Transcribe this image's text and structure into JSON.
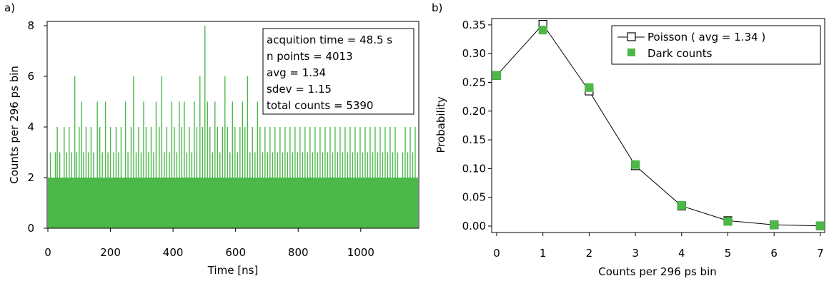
{
  "chart_data": [
    {
      "panel_label": "a)",
      "type": "line",
      "xlabel": "Time [ns]",
      "ylabel": "Counts per 296 ps bin",
      "xlim": [
        0,
        1185
      ],
      "ylim": [
        0,
        8
      ],
      "x_ticks": [
        "0",
        "200",
        "400",
        "600",
        "800",
        "1000"
      ],
      "y_ticks": [
        "0",
        "2",
        "4",
        "6",
        "8"
      ],
      "series": [
        {
          "color": "#4cb849",
          "n_points": 4013,
          "bin_width_ns": 0.296,
          "peaks": [
            {
              "x": 8,
              "y": 3
            },
            {
              "x": 18,
              "y": 2
            },
            {
              "x": 24,
              "y": 3
            },
            {
              "x": 30,
              "y": 4
            },
            {
              "x": 38,
              "y": 3
            },
            {
              "x": 46,
              "y": 2
            },
            {
              "x": 52,
              "y": 4
            },
            {
              "x": 60,
              "y": 3
            },
            {
              "x": 68,
              "y": 4
            },
            {
              "x": 76,
              "y": 3
            },
            {
              "x": 86,
              "y": 6
            },
            {
              "x": 92,
              "y": 3
            },
            {
              "x": 100,
              "y": 4
            },
            {
              "x": 108,
              "y": 5
            },
            {
              "x": 114,
              "y": 3
            },
            {
              "x": 122,
              "y": 4
            },
            {
              "x": 130,
              "y": 3
            },
            {
              "x": 138,
              "y": 4
            },
            {
              "x": 146,
              "y": 3
            },
            {
              "x": 158,
              "y": 5
            },
            {
              "x": 166,
              "y": 4
            },
            {
              "x": 174,
              "y": 3
            },
            {
              "x": 184,
              "y": 5
            },
            {
              "x": 192,
              "y": 3
            },
            {
              "x": 200,
              "y": 4
            },
            {
              "x": 210,
              "y": 3
            },
            {
              "x": 218,
              "y": 4
            },
            {
              "x": 226,
              "y": 3
            },
            {
              "x": 234,
              "y": 4
            },
            {
              "x": 240,
              "y": 2
            },
            {
              "x": 248,
              "y": 5
            },
            {
              "x": 256,
              "y": 3
            },
            {
              "x": 266,
              "y": 4
            },
            {
              "x": 274,
              "y": 6
            },
            {
              "x": 282,
              "y": 3
            },
            {
              "x": 290,
              "y": 4
            },
            {
              "x": 298,
              "y": 3
            },
            {
              "x": 306,
              "y": 5
            },
            {
              "x": 314,
              "y": 4
            },
            {
              "x": 322,
              "y": 3
            },
            {
              "x": 330,
              "y": 4
            },
            {
              "x": 338,
              "y": 3
            },
            {
              "x": 346,
              "y": 5
            },
            {
              "x": 356,
              "y": 4
            },
            {
              "x": 364,
              "y": 6
            },
            {
              "x": 372,
              "y": 3
            },
            {
              "x": 380,
              "y": 4
            },
            {
              "x": 388,
              "y": 3
            },
            {
              "x": 396,
              "y": 5
            },
            {
              "x": 404,
              "y": 4
            },
            {
              "x": 412,
              "y": 3
            },
            {
              "x": 420,
              "y": 5
            },
            {
              "x": 428,
              "y": 4
            },
            {
              "x": 436,
              "y": 5
            },
            {
              "x": 444,
              "y": 3
            },
            {
              "x": 452,
              "y": 4
            },
            {
              "x": 460,
              "y": 3
            },
            {
              "x": 468,
              "y": 5
            },
            {
              "x": 476,
              "y": 4
            },
            {
              "x": 486,
              "y": 6
            },
            {
              "x": 494,
              "y": 4
            },
            {
              "x": 502,
              "y": 8
            },
            {
              "x": 510,
              "y": 5
            },
            {
              "x": 518,
              "y": 4
            },
            {
              "x": 526,
              "y": 3
            },
            {
              "x": 534,
              "y": 5
            },
            {
              "x": 542,
              "y": 4
            },
            {
              "x": 550,
              "y": 3
            },
            {
              "x": 558,
              "y": 4
            },
            {
              "x": 566,
              "y": 6
            },
            {
              "x": 574,
              "y": 4
            },
            {
              "x": 582,
              "y": 3
            },
            {
              "x": 590,
              "y": 5
            },
            {
              "x": 598,
              "y": 4
            },
            {
              "x": 606,
              "y": 3
            },
            {
              "x": 614,
              "y": 4
            },
            {
              "x": 622,
              "y": 5
            },
            {
              "x": 630,
              "y": 4
            },
            {
              "x": 638,
              "y": 6
            },
            {
              "x": 646,
              "y": 3
            },
            {
              "x": 654,
              "y": 4
            },
            {
              "x": 662,
              "y": 3
            },
            {
              "x": 670,
              "y": 5
            },
            {
              "x": 678,
              "y": 4
            },
            {
              "x": 686,
              "y": 3
            },
            {
              "x": 694,
              "y": 4
            },
            {
              "x": 702,
              "y": 3
            },
            {
              "x": 710,
              "y": 4
            },
            {
              "x": 718,
              "y": 3
            },
            {
              "x": 726,
              "y": 4
            },
            {
              "x": 734,
              "y": 3
            },
            {
              "x": 742,
              "y": 4
            },
            {
              "x": 750,
              "y": 3
            },
            {
              "x": 758,
              "y": 4
            },
            {
              "x": 766,
              "y": 3
            },
            {
              "x": 774,
              "y": 4
            },
            {
              "x": 782,
              "y": 3
            },
            {
              "x": 790,
              "y": 4
            },
            {
              "x": 798,
              "y": 3
            },
            {
              "x": 806,
              "y": 4
            },
            {
              "x": 814,
              "y": 3
            },
            {
              "x": 822,
              "y": 4
            },
            {
              "x": 830,
              "y": 3
            },
            {
              "x": 838,
              "y": 4
            },
            {
              "x": 846,
              "y": 3
            },
            {
              "x": 854,
              "y": 4
            },
            {
              "x": 862,
              "y": 3
            },
            {
              "x": 870,
              "y": 4
            },
            {
              "x": 878,
              "y": 3
            },
            {
              "x": 886,
              "y": 4
            },
            {
              "x": 894,
              "y": 3
            },
            {
              "x": 902,
              "y": 4
            },
            {
              "x": 910,
              "y": 3
            },
            {
              "x": 918,
              "y": 4
            },
            {
              "x": 926,
              "y": 3
            },
            {
              "x": 934,
              "y": 4
            },
            {
              "x": 942,
              "y": 3
            },
            {
              "x": 950,
              "y": 4
            },
            {
              "x": 958,
              "y": 3
            },
            {
              "x": 966,
              "y": 4
            },
            {
              "x": 974,
              "y": 3
            },
            {
              "x": 982,
              "y": 4
            },
            {
              "x": 990,
              "y": 3
            },
            {
              "x": 998,
              "y": 4
            },
            {
              "x": 1006,
              "y": 3
            },
            {
              "x": 1014,
              "y": 4
            },
            {
              "x": 1022,
              "y": 3
            },
            {
              "x": 1030,
              "y": 4
            },
            {
              "x": 1038,
              "y": 3
            },
            {
              "x": 1046,
              "y": 4
            },
            {
              "x": 1054,
              "y": 3
            },
            {
              "x": 1062,
              "y": 4
            },
            {
              "x": 1070,
              "y": 3
            },
            {
              "x": 1078,
              "y": 4
            },
            {
              "x": 1086,
              "y": 3
            },
            {
              "x": 1094,
              "y": 4
            },
            {
              "x": 1102,
              "y": 3
            },
            {
              "x": 1110,
              "y": 4
            },
            {
              "x": 1118,
              "y": 3
            },
            {
              "x": 1126,
              "y": 2
            },
            {
              "x": 1134,
              "y": 3
            },
            {
              "x": 1142,
              "y": 4
            },
            {
              "x": 1150,
              "y": 3
            },
            {
              "x": 1158,
              "y": 4
            },
            {
              "x": 1166,
              "y": 3
            },
            {
              "x": 1174,
              "y": 4
            }
          ]
        }
      ],
      "annotation": [
        "acquition time = 48.5 s",
        "n points = 4013",
        "avg = 1.34",
        "sdev = 1.15",
        "total counts = 5390"
      ]
    },
    {
      "panel_label": "b)",
      "type": "scatter",
      "xlabel": "Counts per 296 ps bin",
      "ylabel": "Probability",
      "xlim": [
        0,
        7
      ],
      "ylim": [
        0,
        0.35
      ],
      "x_ticks": [
        "0",
        "1",
        "2",
        "3",
        "4",
        "5",
        "6",
        "7"
      ],
      "y_ticks": [
        "0.00",
        "0.05",
        "0.10",
        "0.15",
        "0.20",
        "0.25",
        "0.30",
        "0.35"
      ],
      "series": [
        {
          "name": "Poisson ( avg = 1.34 )",
          "marker": "open-square",
          "color": "#000000",
          "x": [
            0,
            1,
            2,
            3,
            4,
            5,
            6,
            7
          ],
          "y": [
            0.262,
            0.351,
            0.235,
            0.105,
            0.035,
            0.0094,
            0.0021,
            0.0004
          ]
        },
        {
          "name": "Dark counts",
          "marker": "filled-square",
          "color": "#4cb849",
          "x": [
            0,
            1,
            2,
            3,
            4,
            5,
            6,
            7
          ],
          "y": [
            0.262,
            0.341,
            0.241,
            0.107,
            0.036,
            0.008,
            0.002,
            0.0005
          ]
        }
      ],
      "legend_position": "top-right"
    }
  ]
}
